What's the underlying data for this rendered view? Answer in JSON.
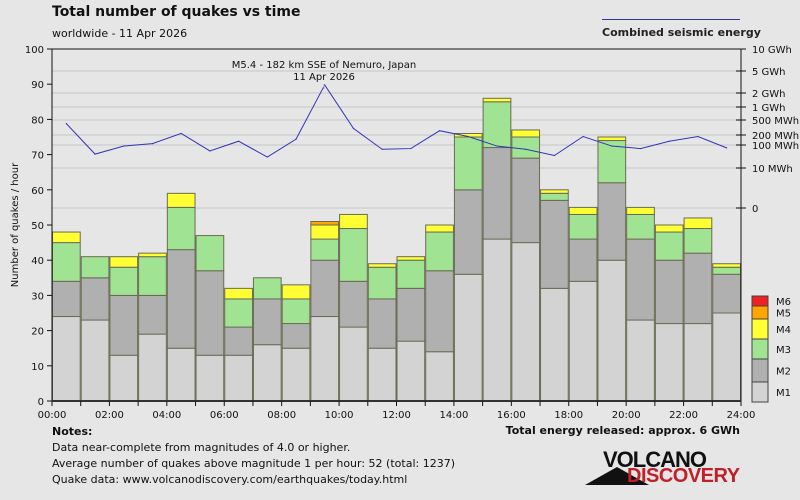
{
  "header": {
    "title": "Total number of quakes vs time",
    "subtitle": "worldwide - 11 Apr 2026",
    "energy_legend_label": "Combined seismic energy"
  },
  "annotation": {
    "line1": "M5.4 - 182 km SSE of Nemuro, Japan",
    "line2": "11 Apr 2026"
  },
  "notes": {
    "heading": "Notes:",
    "lines": [
      "Data near-complete from magnitudes of 4.0 or higher.",
      "Average number of quakes above magnitude 1 per hour: 52 (total: 1237)",
      "Quake data: www.volcanodiscovery.com/earthquakes/today.html"
    ],
    "total_energy": "Total energy released: approx. 6 GWh"
  },
  "logo": {
    "line1": "VOLCANO",
    "line2": "DISCOVERY"
  },
  "chart_data": {
    "type": "bar",
    "stacked": true,
    "title": "Total number of quakes vs time",
    "subtitle": "worldwide - 11 Apr 2026",
    "xlabel": "",
    "ylabel": "Number of quakes / hour",
    "ylim": [
      0,
      100
    ],
    "yticks": [
      0,
      10,
      20,
      30,
      40,
      50,
      60,
      70,
      80,
      90,
      100
    ],
    "xticks": [
      "00:00",
      "02:00",
      "04:00",
      "06:00",
      "08:00",
      "10:00",
      "12:00",
      "14:00",
      "16:00",
      "18:00",
      "20:00",
      "22:00",
      "24:00"
    ],
    "hours": [
      0,
      1,
      2,
      3,
      4,
      5,
      6,
      7,
      8,
      9,
      10,
      11,
      12,
      13,
      14,
      15,
      16,
      17,
      18,
      19,
      20,
      21,
      22,
      23
    ],
    "grid": true,
    "legend_position": "bottom-right",
    "series": [
      {
        "name": "M1",
        "color": "#d3d3d3",
        "values": [
          24,
          23,
          13,
          19,
          15,
          13,
          13,
          16,
          15,
          24,
          21,
          15,
          17,
          14,
          36,
          46,
          45,
          32,
          34,
          40,
          23,
          22,
          22,
          25
        ]
      },
      {
        "name": "M2",
        "color": "#b0b0b0",
        "values": [
          10,
          12,
          17,
          11,
          28,
          24,
          8,
          13,
          7,
          16,
          13,
          14,
          15,
          23,
          24,
          26,
          24,
          25,
          12,
          22,
          23,
          18,
          20,
          11
        ]
      },
      {
        "name": "M3",
        "color": "#a0e493",
        "values": [
          11,
          6,
          8,
          11,
          12,
          10,
          8,
          6,
          7,
          6,
          15,
          9,
          8,
          11,
          15,
          13,
          6,
          2,
          7,
          12,
          7,
          8,
          7,
          2
        ]
      },
      {
        "name": "M4",
        "color": "#ffff33",
        "values": [
          3,
          0,
          3,
          1,
          4,
          0,
          3,
          0,
          4,
          4,
          4,
          1,
          1,
          2,
          1,
          1,
          2,
          1,
          2,
          1,
          2,
          2,
          3,
          1
        ]
      },
      {
        "name": "M5",
        "color": "#ffa500",
        "values": [
          0,
          0,
          0,
          0,
          0,
          0,
          0,
          0,
          0,
          1,
          0,
          0,
          0,
          0,
          0,
          0,
          0,
          0,
          0,
          0,
          0,
          0,
          0,
          0
        ]
      },
      {
        "name": "M6",
        "color": "#ee2222",
        "values": [
          0,
          0,
          0,
          0,
          0,
          0,
          0,
          0,
          0,
          0,
          0,
          0,
          0,
          0,
          0,
          0,
          0,
          0,
          0,
          0,
          0,
          0,
          0,
          0
        ]
      }
    ],
    "energy_series": {
      "name": "Combined seismic energy",
      "color": "#3333bb",
      "unit": "MWh",
      "right_axis_ticks": [
        {
          "label": "10 GWh",
          "value_mwh": 10000
        },
        {
          "label": "5 GWh",
          "value_mwh": 5000
        },
        {
          "label": "2 GWh",
          "value_mwh": 2000
        },
        {
          "label": "1 GWh",
          "value_mwh": 1000
        },
        {
          "label": "500 MWh",
          "value_mwh": 500
        },
        {
          "label": "200 MWh",
          "value_mwh": 200
        },
        {
          "label": "100 MWh",
          "value_mwh": 100
        },
        {
          "label": "10 MWh",
          "value_mwh": 10
        },
        {
          "label": "0",
          "value_mwh": 0
        }
      ],
      "values_mwh": [
        400,
        40,
        90,
        110,
        220,
        55,
        130,
        30,
        150,
        2800,
        300,
        65,
        70,
        260,
        180,
        90,
        65,
        35,
        180,
        90,
        70,
        130,
        180,
        75
      ]
    },
    "annotation": "M5.4 - 182 km SSE of Nemuro, Japan / 11 Apr 2026"
  }
}
